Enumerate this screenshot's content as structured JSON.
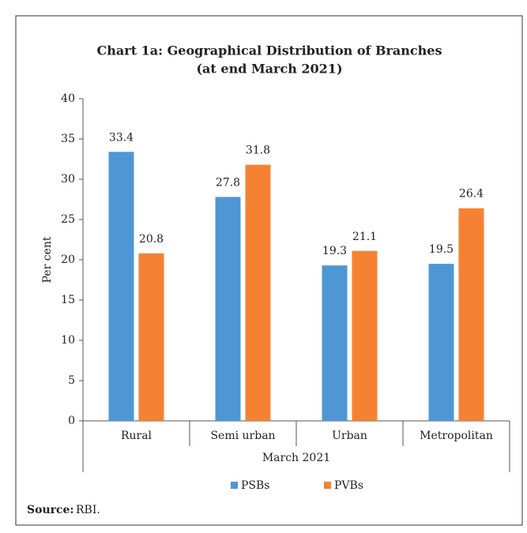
{
  "chart_data": {
    "type": "bar",
    "title": "Chart 1a: Geographical Distribution of Branches",
    "subtitle": "(at end March 2021)",
    "ylabel": "Per cent",
    "xlabel": "March 2021",
    "categories": [
      "Rural",
      "Semi urban",
      "Urban",
      "Metropolitan"
    ],
    "series": [
      {
        "name": "PSBs",
        "color": "#4e97d4",
        "values": [
          33.4,
          27.8,
          19.3,
          19.5
        ]
      },
      {
        "name": "PVBs",
        "color": "#f58233",
        "values": [
          20.8,
          31.8,
          21.1,
          26.4
        ]
      }
    ],
    "ylim": [
      0,
      40
    ],
    "yticks": [
      0,
      5,
      10,
      15,
      20,
      25,
      30,
      35,
      40
    ],
    "legend": "bottom",
    "source_label": "Source:",
    "source": "RBI."
  }
}
